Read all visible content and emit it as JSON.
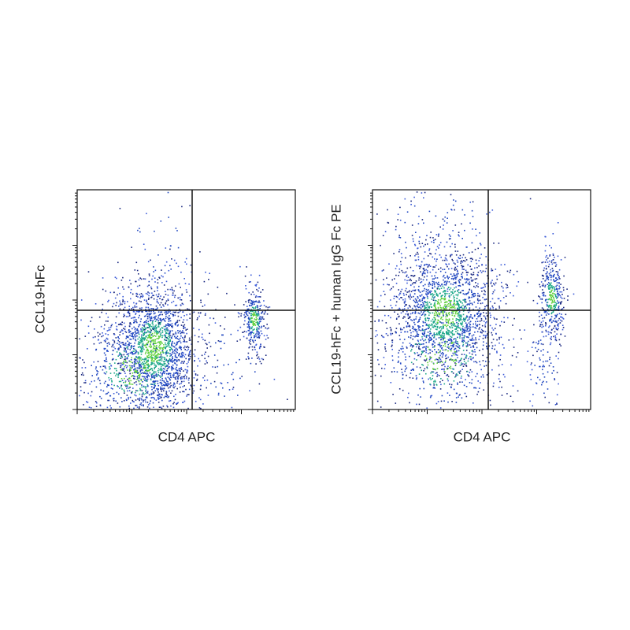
{
  "panels": [
    {
      "x_label": "CD4 APC",
      "y_label": "CCL19-hFc"
    },
    {
      "x_label": "CD4 APC",
      "y_label": "CCL19-hFc + human IgG Fc PE"
    }
  ]
}
